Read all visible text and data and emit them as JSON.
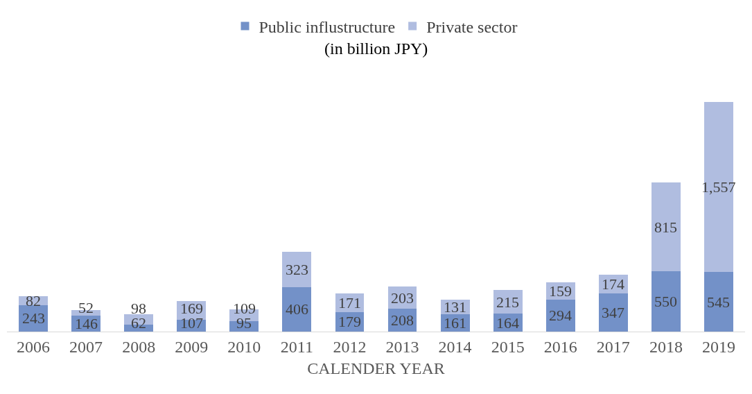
{
  "chart_data": {
    "type": "bar",
    "subtitle": "(in billion JPY)",
    "xlabel": "CALENDER YEAR",
    "categories": [
      "2006",
      "2007",
      "2008",
      "2009",
      "2010",
      "2011",
      "2012",
      "2013",
      "2014",
      "2015",
      "2016",
      "2017",
      "2018",
      "2019"
    ],
    "series": [
      {
        "name": "Public influstructure",
        "color": "#7391c8",
        "values": [
          243,
          146,
          62,
          107,
          95,
          406,
          179,
          208,
          161,
          164,
          294,
          347,
          550,
          545
        ],
        "value_labels": [
          "243",
          "146",
          "62",
          "107",
          "95",
          "406",
          "179",
          "208",
          "161",
          "164",
          "294",
          "347",
          "550",
          "545"
        ]
      },
      {
        "name": "Private sector",
        "color": "#b0bde0",
        "values": [
          82,
          52,
          98,
          169,
          109,
          323,
          171,
          203,
          131,
          215,
          159,
          174,
          815,
          1557
        ],
        "value_labels": [
          "82",
          "52",
          "98",
          "169",
          "109",
          "323",
          "171",
          "203",
          "131",
          "215",
          "159",
          "174",
          "815",
          "1,557"
        ]
      }
    ],
    "stacked": true,
    "legend": "top",
    "grid": false
  }
}
